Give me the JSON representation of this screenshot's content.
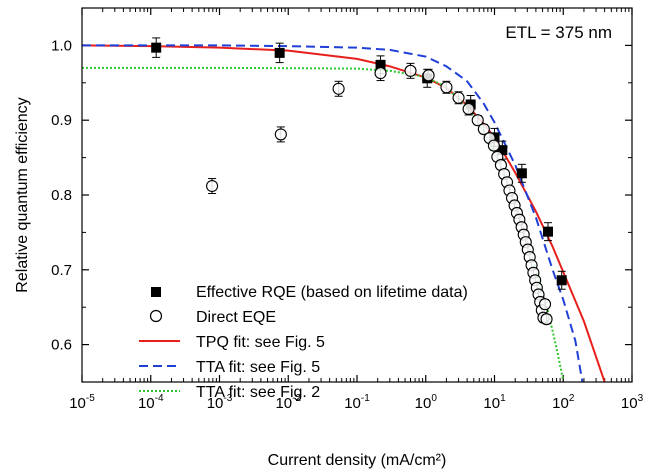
{
  "chart_data": {
    "type": "scatter",
    "xlabel": "Current density (mA/cm²)",
    "ylabel": "Relative quantum efficiency",
    "xscale": "log",
    "xlim": [
      1e-05,
      1000
    ],
    "ylim": [
      0.55,
      1.05
    ],
    "x_ticks": [
      {
        "base": "10",
        "exp": "-5",
        "value": 1e-05
      },
      {
        "base": "10",
        "exp": "-4",
        "value": 0.0001
      },
      {
        "base": "10",
        "exp": "-3",
        "value": 0.001
      },
      {
        "base": "10",
        "exp": "-2",
        "value": 0.01
      },
      {
        "base": "10",
        "exp": "-1",
        "value": 0.1
      },
      {
        "base": "10",
        "exp": "0",
        "value": 1
      },
      {
        "base": "10",
        "exp": "1",
        "value": 10
      },
      {
        "base": "10",
        "exp": "2",
        "value": 100
      },
      {
        "base": "10",
        "exp": "3",
        "value": 1000
      }
    ],
    "y_ticks": [
      {
        "label": "0.6",
        "value": 0.6
      },
      {
        "label": "0.7",
        "value": 0.7
      },
      {
        "label": "0.8",
        "value": 0.8
      },
      {
        "label": "0.9",
        "value": 0.9
      },
      {
        "label": "1.0",
        "value": 1.0
      }
    ],
    "annotation": "ETL = 375 nm",
    "legend_position": "bottom-left",
    "series": [
      {
        "name": "Effective RQE (based on lifetime data)",
        "kind": "scatter",
        "marker": "filled-square",
        "color": "#000000",
        "x": [
          0.00012,
          0.0075,
          0.22,
          1.05,
          4.5,
          10,
          13,
          25,
          60,
          95
        ],
        "y": [
          0.997,
          0.99,
          0.974,
          0.956,
          0.921,
          0.877,
          0.86,
          0.829,
          0.751,
          0.686
        ],
        "err": [
          0.013,
          0.013,
          0.012,
          0.012,
          0.012,
          0.012,
          0.012,
          0.012,
          0.012,
          0.012
        ]
      },
      {
        "name": "Direct EQE",
        "kind": "scatter",
        "marker": "open-circle",
        "color": "#000000",
        "x": [
          0.00078,
          0.0078,
          0.054,
          0.22,
          0.6,
          1.1,
          2.0,
          3.0,
          4.2,
          5.7,
          7.0,
          8.5,
          9.8,
          11.0,
          12.4,
          13.8,
          15.2,
          16.5,
          18.0,
          19.6,
          21.2,
          23.0,
          24.8,
          26.6,
          28.5,
          30.5,
          32.5,
          34.6,
          36.8,
          39.0,
          41.3,
          43.7,
          46.2,
          48.8,
          51.5,
          54.3,
          57.2
        ],
        "y": [
          0.812,
          0.881,
          0.942,
          0.963,
          0.966,
          0.96,
          0.944,
          0.93,
          0.915,
          0.9,
          0.888,
          0.876,
          0.866,
          0.851,
          0.84,
          0.828,
          0.817,
          0.806,
          0.796,
          0.786,
          0.776,
          0.767,
          0.757,
          0.747,
          0.737,
          0.727,
          0.717,
          0.706,
          0.696,
          0.686,
          0.676,
          0.667,
          0.657,
          0.646,
          0.636,
          0.654,
          0.634
        ],
        "err": [
          0.01,
          0.01,
          0.01,
          0.01,
          0.01,
          0.008,
          0.008,
          0.008,
          0.008,
          0.006,
          0.006,
          0.006,
          0.006,
          0.006,
          0.006,
          0.006,
          0.006,
          0.006,
          0.006,
          0.006,
          0.006,
          0.006,
          0.006,
          0.006,
          0.006,
          0.006,
          0.006,
          0.006,
          0.006,
          0.006,
          0.006,
          0.006,
          0.006,
          0.006,
          0.006,
          0.006,
          0.006
        ]
      },
      {
        "name": "TPQ fit: see Fig. 5",
        "kind": "line",
        "style": "solid",
        "color": "#e8201c",
        "x": [
          1e-05,
          0.0001,
          0.001,
          0.01,
          0.1,
          0.3,
          1,
          2,
          4,
          7,
          10,
          20,
          40,
          70,
          100,
          200,
          400
        ],
        "y": [
          1.0,
          0.999,
          0.997,
          0.993,
          0.982,
          0.972,
          0.957,
          0.943,
          0.92,
          0.895,
          0.877,
          0.83,
          0.778,
          0.731,
          0.697,
          0.631,
          0.55
        ]
      },
      {
        "name": "TTA fit:  see Fig. 5",
        "kind": "line",
        "style": "dashed",
        "color": "#1f3fd6",
        "x": [
          1e-05,
          0.001,
          0.01,
          0.1,
          0.3,
          1,
          2,
          4,
          7,
          10,
          20,
          40,
          70,
          100,
          150,
          190
        ],
        "y": [
          1.0,
          1.0,
          0.999,
          0.997,
          0.994,
          0.985,
          0.972,
          0.952,
          0.922,
          0.897,
          0.84,
          0.77,
          0.7,
          0.66,
          0.605,
          0.55
        ]
      },
      {
        "name": "TTA fit:  see Fig. 2",
        "kind": "line",
        "style": "dotted",
        "color": "#2dc82d",
        "x": [
          1e-05,
          0.001,
          0.1,
          0.3,
          1,
          2,
          4,
          7,
          10,
          20,
          40,
          60,
          80,
          100
        ],
        "y": [
          0.97,
          0.97,
          0.969,
          0.966,
          0.958,
          0.944,
          0.918,
          0.885,
          0.858,
          0.79,
          0.7,
          0.645,
          0.595,
          0.552
        ]
      }
    ]
  }
}
